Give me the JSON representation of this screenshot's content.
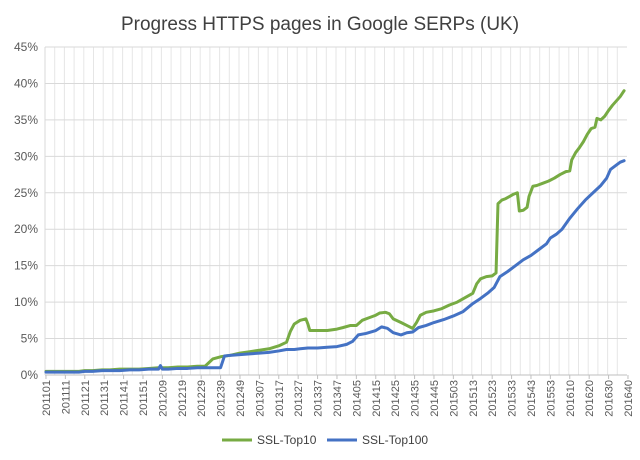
{
  "chart_data": {
    "type": "line",
    "title": "Progress HTTPS pages in Google SERPs (UK)",
    "xlabel": "",
    "ylabel": "",
    "ylim": [
      0,
      45
    ],
    "y_ticks": [
      "0%",
      "5%",
      "10%",
      "15%",
      "20%",
      "25%",
      "30%",
      "35%",
      "40%",
      "45%"
    ],
    "x_tick_labels": [
      "201101",
      "201111",
      "201121",
      "201131",
      "201141",
      "201151",
      "201209",
      "201219",
      "201229",
      "201239",
      "201249",
      "201307",
      "201317",
      "201327",
      "201337",
      "201347",
      "201405",
      "201415",
      "201425",
      "201435",
      "201445",
      "201503",
      "201513",
      "201523",
      "201533",
      "201543",
      "201553",
      "201610",
      "201620",
      "201630",
      "201640"
    ],
    "grid": true,
    "legend_position": "bottom",
    "series": [
      {
        "name": "SSL-Top10",
        "color": "#77ab43",
        "points": [
          [
            0,
            0.5
          ],
          [
            5,
            0.5
          ],
          [
            10,
            0.5
          ],
          [
            14,
            0.5
          ],
          [
            17,
            0.5
          ],
          [
            20,
            0.6
          ],
          [
            24,
            0.6
          ],
          [
            29,
            0.7
          ],
          [
            33,
            0.7
          ],
          [
            38,
            0.8
          ],
          [
            43,
            0.8
          ],
          [
            48,
            0.8
          ],
          [
            53,
            0.9
          ],
          [
            58,
            1.0
          ],
          [
            63,
            1.0
          ],
          [
            68,
            1.1
          ],
          [
            73,
            1.1
          ],
          [
            78,
            1.2
          ],
          [
            82,
            1.2
          ],
          [
            86,
            2.2
          ],
          [
            90,
            2.5
          ],
          [
            95,
            2.7
          ],
          [
            100,
            3.0
          ],
          [
            105,
            3.2
          ],
          [
            110,
            3.4
          ],
          [
            115,
            3.6
          ],
          [
            120,
            4.0
          ],
          [
            124,
            4.5
          ],
          [
            126,
            6.0
          ],
          [
            128,
            7.0
          ],
          [
            131,
            7.5
          ],
          [
            134,
            7.7
          ],
          [
            135,
            7.0
          ],
          [
            136,
            6.1
          ],
          [
            140,
            6.1
          ],
          [
            145,
            6.1
          ],
          [
            150,
            6.3
          ],
          [
            153,
            6.5
          ],
          [
            157,
            6.8
          ],
          [
            160,
            6.8
          ],
          [
            163,
            7.5
          ],
          [
            166,
            7.8
          ],
          [
            170,
            8.2
          ],
          [
            172,
            8.5
          ],
          [
            175,
            8.6
          ],
          [
            177,
            8.4
          ],
          [
            179,
            7.7
          ],
          [
            183,
            7.2
          ],
          [
            186,
            6.8
          ],
          [
            189,
            6.4
          ],
          [
            191,
            7.2
          ],
          [
            193,
            8.2
          ],
          [
            196,
            8.6
          ],
          [
            200,
            8.8
          ],
          [
            204,
            9.1
          ],
          [
            208,
            9.6
          ],
          [
            212,
            10.0
          ],
          [
            216,
            10.6
          ],
          [
            220,
            11.2
          ],
          [
            222,
            12.5
          ],
          [
            224,
            13.2
          ],
          [
            227,
            13.5
          ],
          [
            230,
            13.6
          ],
          [
            232,
            14.0
          ],
          [
            233,
            23.5
          ],
          [
            235,
            24.0
          ],
          [
            237,
            24.2
          ],
          [
            239,
            24.5
          ],
          [
            241,
            24.8
          ],
          [
            243,
            25.0
          ],
          [
            244,
            22.5
          ],
          [
            246,
            22.6
          ],
          [
            248,
            23.0
          ],
          [
            249,
            24.5
          ],
          [
            251,
            25.9
          ],
          [
            253,
            26.0
          ],
          [
            256,
            26.3
          ],
          [
            259,
            26.6
          ],
          [
            262,
            27.0
          ],
          [
            265,
            27.5
          ],
          [
            268,
            27.9
          ],
          [
            270,
            28.0
          ],
          [
            271,
            29.5
          ],
          [
            273,
            30.5
          ],
          [
            275,
            31.2
          ],
          [
            277,
            32.0
          ],
          [
            279,
            33.0
          ],
          [
            281,
            33.8
          ],
          [
            283,
            34.0
          ],
          [
            284,
            35.2
          ],
          [
            286,
            35.0
          ],
          [
            288,
            35.5
          ],
          [
            290,
            36.3
          ],
          [
            292,
            37.0
          ],
          [
            294,
            37.6
          ],
          [
            296,
            38.2
          ],
          [
            298,
            39.0
          ]
        ]
      },
      {
        "name": "SSL-Top100",
        "color": "#4472c4",
        "points": [
          [
            0,
            0.4
          ],
          [
            5,
            0.4
          ],
          [
            10,
            0.4
          ],
          [
            14,
            0.4
          ],
          [
            17,
            0.4
          ],
          [
            20,
            0.5
          ],
          [
            24,
            0.5
          ],
          [
            29,
            0.6
          ],
          [
            33,
            0.6
          ],
          [
            38,
            0.6
          ],
          [
            43,
            0.7
          ],
          [
            48,
            0.7
          ],
          [
            53,
            0.8
          ],
          [
            58,
            0.8
          ],
          [
            59,
            1.3
          ],
          [
            60,
            0.8
          ],
          [
            63,
            0.8
          ],
          [
            68,
            0.9
          ],
          [
            73,
            0.9
          ],
          [
            78,
            1.0
          ],
          [
            82,
            1.0
          ],
          [
            86,
            1.0
          ],
          [
            90,
            1.0
          ],
          [
            92,
            2.6
          ],
          [
            95,
            2.7
          ],
          [
            100,
            2.8
          ],
          [
            105,
            2.9
          ],
          [
            110,
            3.0
          ],
          [
            115,
            3.1
          ],
          [
            120,
            3.3
          ],
          [
            124,
            3.5
          ],
          [
            128,
            3.5
          ],
          [
            131,
            3.6
          ],
          [
            135,
            3.7
          ],
          [
            140,
            3.7
          ],
          [
            145,
            3.8
          ],
          [
            150,
            3.9
          ],
          [
            155,
            4.2
          ],
          [
            158,
            4.6
          ],
          [
            161,
            5.5
          ],
          [
            165,
            5.7
          ],
          [
            170,
            6.1
          ],
          [
            173,
            6.6
          ],
          [
            176,
            6.4
          ],
          [
            179,
            5.8
          ],
          [
            183,
            5.5
          ],
          [
            186,
            5.8
          ],
          [
            189,
            5.9
          ],
          [
            192,
            6.5
          ],
          [
            196,
            6.8
          ],
          [
            200,
            7.2
          ],
          [
            205,
            7.6
          ],
          [
            210,
            8.1
          ],
          [
            215,
            8.7
          ],
          [
            220,
            9.8
          ],
          [
            224,
            10.5
          ],
          [
            228,
            11.3
          ],
          [
            231,
            12.0
          ],
          [
            234,
            13.5
          ],
          [
            238,
            14.2
          ],
          [
            242,
            15.0
          ],
          [
            246,
            15.8
          ],
          [
            250,
            16.4
          ],
          [
            254,
            17.2
          ],
          [
            258,
            18.0
          ],
          [
            260,
            18.8
          ],
          [
            263,
            19.3
          ],
          [
            266,
            20.0
          ],
          [
            270,
            21.5
          ],
          [
            274,
            22.8
          ],
          [
            278,
            24.0
          ],
          [
            282,
            25.0
          ],
          [
            286,
            26.0
          ],
          [
            289,
            27.0
          ],
          [
            291,
            28.2
          ],
          [
            294,
            28.8
          ],
          [
            296,
            29.2
          ],
          [
            298,
            29.4
          ]
        ]
      }
    ]
  }
}
